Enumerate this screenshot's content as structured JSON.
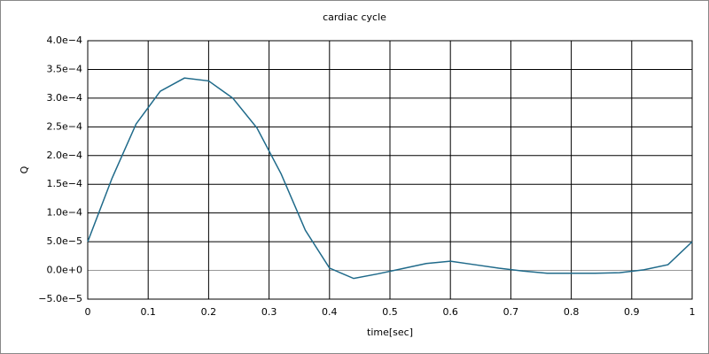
{
  "chart_data": {
    "type": "line",
    "title": "cardiac cycle",
    "x_label": "time[sec]",
    "y_label": "Q",
    "x": [
      0,
      0.04,
      0.08,
      0.12,
      0.16,
      0.2,
      0.24,
      0.28,
      0.32,
      0.36,
      0.4,
      0.44,
      0.48,
      0.52,
      0.56,
      0.6,
      0.64,
      0.68,
      0.72,
      0.76,
      0.8,
      0.84,
      0.88,
      0.92,
      0.96,
      1
    ],
    "series": [
      {
        "name": "Q",
        "color": "#1f6a8a",
        "values": [
          5e-05,
          0.00016,
          0.000255,
          0.000312,
          0.000335,
          0.00033,
          0.0003,
          0.000248,
          0.000168,
          7e-05,
          4e-06,
          -1.4e-05,
          -6e-06,
          3e-06,
          1.2e-05,
          1.6e-05,
          1e-05,
          4e-06,
          -1e-06,
          -5e-06,
          -5e-06,
          -5e-06,
          -4e-06,
          1e-06,
          1e-05,
          5e-05
        ]
      }
    ],
    "xlim": [
      0,
      1
    ],
    "xticks": [
      0,
      0.1,
      0.2,
      0.3,
      0.4,
      0.5,
      0.6,
      0.7,
      0.8,
      0.9,
      1
    ],
    "ylim": [
      -5e-05,
      0.0004
    ],
    "yticks": [
      {
        "value": -5e-05,
        "label": "−5.0e−5"
      },
      {
        "value": 0,
        "label": "0.0e+0"
      },
      {
        "value": 5e-05,
        "label": "5.0e−5"
      },
      {
        "value": 0.0001,
        "label": "1.0e−4"
      },
      {
        "value": 0.00015,
        "label": "1.5e−4"
      },
      {
        "value": 0.0002,
        "label": "2.0e−4"
      },
      {
        "value": 0.00025,
        "label": "2.5e−4"
      },
      {
        "value": 0.0003,
        "label": "3.0e−4"
      },
      {
        "value": 0.00035,
        "label": "3.5e−4"
      },
      {
        "value": 0.0004,
        "label": "4.0e−4"
      }
    ],
    "grid": true
  }
}
